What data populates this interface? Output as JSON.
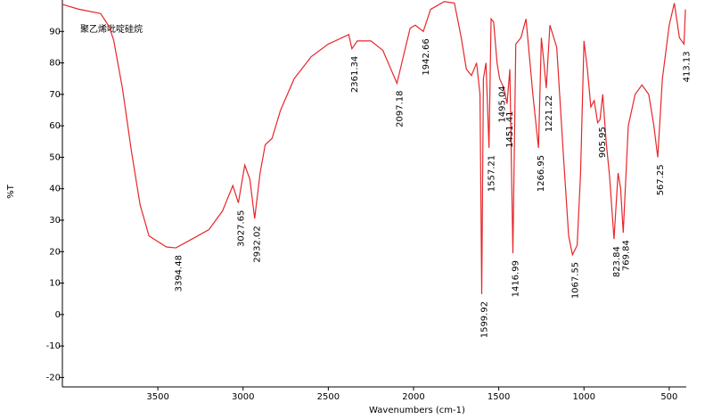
{
  "chart_data": {
    "type": "line",
    "series_label": "聚乙烯吡啶硅烷",
    "xlabel": "Wavenumbers (cm-1)",
    "ylabel": "%T",
    "xlim": [
      4060,
      400
    ],
    "ylim": [
      -23,
      100
    ],
    "xticks": [
      3500,
      3000,
      2500,
      2000,
      1500,
      1000,
      500
    ],
    "yticks": [
      -20,
      -10,
      0,
      10,
      20,
      30,
      40,
      50,
      60,
      70,
      80,
      90
    ],
    "x": [
      4060,
      3966,
      3836,
      3785,
      3759,
      3707,
      3655,
      3604,
      3552,
      3450,
      3394.48,
      3300,
      3200,
      3120,
      3060,
      3027.65,
      2990,
      2960,
      2932.02,
      2900,
      2870,
      2830,
      2780,
      2700,
      2600,
      2500,
      2420,
      2380,
      2361.34,
      2330,
      2250,
      2180,
      2097.18,
      2060,
      2020,
      1990,
      1942.66,
      1900,
      1820,
      1760,
      1720,
      1690,
      1660,
      1630,
      1610,
      1599.92,
      1590,
      1575,
      1557.21,
      1545,
      1530,
      1510,
      1495.04,
      1470,
      1451.41,
      1435,
      1416.99,
      1400,
      1370,
      1340,
      1300,
      1266.95,
      1250,
      1235,
      1221.22,
      1200,
      1160,
      1120,
      1090,
      1067.55,
      1040,
      1020,
      1000,
      980,
      960,
      940,
      920,
      905.95,
      890,
      870,
      850,
      823.84,
      800,
      785,
      769.84,
      740,
      700,
      660,
      620,
      590,
      567.25,
      540,
      500,
      470,
      440,
      413.13,
      405
    ],
    "series": [
      {
        "name": "聚乙烯吡啶硅烷",
        "color": "#e8262a",
        "values": [
          98.6,
          97.1,
          95.7,
          91.5,
          87.2,
          71.7,
          51.9,
          34.9,
          25,
          21.5,
          21.2,
          24,
          27,
          33,
          41,
          35.5,
          47.5,
          43,
          30.5,
          45,
          54,
          56,
          65,
          75,
          82,
          86,
          88,
          89,
          84.5,
          87,
          87,
          84,
          73.5,
          82,
          91,
          92,
          90,
          97,
          99.5,
          99,
          88,
          78,
          76,
          80,
          70,
          6.5,
          75,
          80,
          53,
          94,
          93,
          80,
          75,
          72,
          67,
          78,
          19.5,
          86,
          88,
          94,
          70,
          53,
          88,
          80,
          72,
          92,
          85,
          50,
          25,
          19,
          22,
          45,
          87,
          78,
          66,
          68,
          61,
          62,
          70,
          55,
          44,
          24,
          45,
          40,
          26,
          60,
          70,
          73,
          70,
          60,
          50,
          75,
          92,
          99,
          88,
          86,
          97
        ]
      }
    ],
    "peaks": [
      3394.48,
      3027.65,
      2932.02,
      2361.34,
      2097.18,
      1942.66,
      1599.92,
      1557.21,
      1495.04,
      1451.41,
      1416.99,
      1266.95,
      1221.22,
      1067.55,
      905.95,
      823.84,
      769.84,
      567.25,
      413.13
    ]
  }
}
